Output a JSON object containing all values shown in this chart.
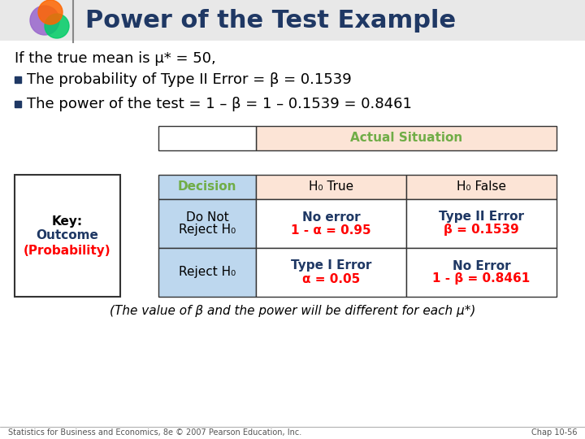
{
  "title": "Power of the Test Example",
  "title_color": "#1F3864",
  "bg_color": "#FFFFFF",
  "subtitle": "If the true mean is μ* = 50,",
  "bullet1": "The probability of Type II Error = β = 0.1539",
  "bullet2": "The power of the test = 1 – β = 1 – 0.1539 = 0.8461",
  "footer_left": "Statistics for Business and Economics, 8e © 2007 Pearson Education, Inc.",
  "footer_right": "Chap 10-56",
  "table": {
    "header_span": "Actual Situation",
    "header_span_color": "#70AD47",
    "header_span_bg": "#FCE4D6",
    "col1_header": "Decision",
    "col1_header_color": "#70AD47",
    "col1_header_bg": "#BDD7EE",
    "col2_header": "H₀ True",
    "col3_header": "H₀ False",
    "col2_header_bg": "#FCE4D6",
    "col3_header_bg": "#FCE4D6",
    "row1_col1_line1": "Do Not",
    "row1_col1_line2": "Reject H₀",
    "row1_col1_bg": "#BDD7EE",
    "row1_col2_line1": "No error",
    "row1_col2_line2": "1 - α = 0.95",
    "row1_col2_line1_color": "#1F3864",
    "row1_col2_line2_color": "#FF0000",
    "row1_col2_bg": "#FFFFFF",
    "row1_col3_line1": "Type II Error",
    "row1_col3_line2": "β = 0.1539",
    "row1_col3_line1_color": "#1F3864",
    "row1_col3_line2_color": "#FF0000",
    "row1_col3_bg": "#FFFFFF",
    "row2_col1_line1": "Reject H₀",
    "row2_col1_bg": "#BDD7EE",
    "row2_col2_line1": "Type I Error",
    "row2_col2_line2": "α = 0.05",
    "row2_col2_line1_color": "#1F3864",
    "row2_col2_line2_color": "#FF0000",
    "row2_col2_bg": "#FFFFFF",
    "row2_col3_line1": "No Error",
    "row2_col3_line2": "1 - β = 0.8461",
    "row2_col3_line1_color": "#1F3864",
    "row2_col3_line2_color": "#FF0000",
    "row2_col3_bg": "#FFFFFF"
  },
  "key_box": {
    "line1": "Key:",
    "line2": "Outcome",
    "line3": "(Probability)",
    "line2_color": "#1F3864",
    "line3_color": "#FF0000"
  },
  "note": "(The value of β and the power will be different for each μ*)"
}
